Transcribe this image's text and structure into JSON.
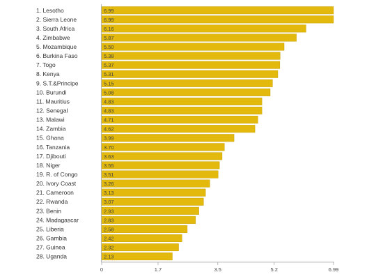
{
  "chart_data": {
    "type": "bar",
    "orientation": "horizontal",
    "categories": [
      "1. Lesotho",
      "2. Sierra Leone",
      "3. South Africa",
      "4. Zimbabwe",
      "5. Mozambique",
      "6. Burkina Faso",
      "7. Togo",
      "8. Kenya",
      "9. S.T.&Principe",
      "10. Burundi",
      "11. Mauritius",
      "12. Senegal",
      "13. Malawi",
      "14. Zambia",
      "15. Ghana",
      "16. Tanzania",
      "17. Djibouti",
      "18. Niger",
      "19. R. of Congo",
      "20. Ivory Coast",
      "21. Cameroon",
      "22. Rwanda",
      "23. Benin",
      "24. Madagascar",
      "25. Liberia",
      "26. Gambia",
      "27. Guinea",
      "28. Uganda"
    ],
    "values": [
      6.99,
      6.99,
      6.16,
      5.87,
      5.5,
      5.38,
      5.37,
      5.31,
      5.15,
      5.08,
      4.83,
      4.83,
      4.71,
      4.62,
      3.99,
      3.7,
      3.63,
      3.55,
      3.51,
      3.26,
      3.13,
      3.07,
      2.93,
      2.83,
      2.58,
      2.42,
      2.32,
      2.13
    ],
    "value_labels": [
      "6.99",
      "6.99",
      "6.16",
      "5.87",
      "5.50",
      "5.38",
      "5.37",
      "5.31",
      "5.15",
      "5.08",
      "4.83",
      "4.83",
      "4.71",
      "4.62",
      "3.99",
      "3.70",
      "3.63",
      "3.55",
      "3.51",
      "3.26",
      "3.13",
      "3.07",
      "2.93",
      "2.83",
      "2.58",
      "2.42",
      "2.32",
      "2.13"
    ],
    "xlim": [
      0,
      6.99
    ],
    "xticks": [
      0,
      1.7,
      3.5,
      5.2,
      6.99
    ],
    "xtick_labels": [
      "0",
      "1.7",
      "3.5",
      "5.2",
      "6.99"
    ],
    "title": "",
    "xlabel": "",
    "ylabel": "",
    "grid": false,
    "bar_color": "#e2b90c",
    "bar_stroke_color": "#c9a200"
  }
}
